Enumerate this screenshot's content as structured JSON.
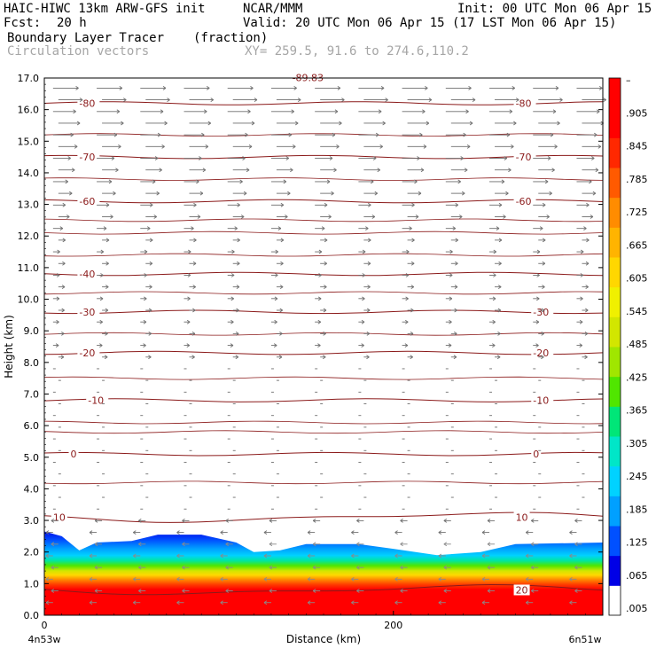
{
  "header": {
    "title_left": "HAIC-HIWC 13km ARW-GFS init",
    "org": "NCAR/MMM",
    "init": "Init: 00 UTC Mon 06 Apr 15",
    "fcst_label": "Fcst:",
    "fcst_value": "20 h",
    "valid": "Valid: 20 UTC Mon 06 Apr 15 (17 LST Mon 06 Apr 15)",
    "field": "Boundary Layer Tracer",
    "units": "(fraction)",
    "overlay": "Circulation vectors",
    "xy": "XY= 259.5, 91.6 to 274.6,110.2"
  },
  "chart_data": {
    "type": "heatmap",
    "xlabel": "Distance (km)",
    "ylabel": "Height (km)",
    "x_range": [
      0,
      320
    ],
    "ylim": [
      0.0,
      17.0
    ],
    "x_ticks": [
      "0",
      "200"
    ],
    "x_end_labels": [
      "4n53w",
      "6n51w"
    ],
    "y_ticks": [
      "0.0",
      "1.0",
      "2.0",
      "3.0",
      "4.0",
      "5.0",
      "6.0",
      "7.0",
      "8.0",
      "9.0",
      "10.0",
      "11.0",
      "12.0",
      "13.0",
      "14.0",
      "15.0",
      "16.0",
      "17.0"
    ],
    "colorbar_labels": [
      ".005",
      ".065",
      ".125",
      ".185",
      ".245",
      ".305",
      ".365",
      ".425",
      ".485",
      ".545",
      ".605",
      ".665",
      ".725",
      ".785",
      ".845",
      ".905",
      "–"
    ],
    "colorbar_colors": [
      "#ffffff",
      "#0000e6",
      "#0050ff",
      "#00a0ff",
      "#00d2ff",
      "#00e6c8",
      "#00e678",
      "#50e600",
      "#a0e600",
      "#d2e600",
      "#f0f000",
      "#ffd700",
      "#ffb400",
      "#ff8c00",
      "#ff5a00",
      "#ff2800",
      "#ff0000",
      "#ff0000"
    ],
    "pbl_top_km": [
      [
        0,
        2.65
      ],
      [
        10,
        2.5
      ],
      [
        20,
        2.05
      ],
      [
        30,
        2.3
      ],
      [
        50,
        2.35
      ],
      [
        65,
        2.55
      ],
      [
        90,
        2.55
      ],
      [
        110,
        2.3
      ],
      [
        120,
        2.0
      ],
      [
        135,
        2.05
      ],
      [
        150,
        2.25
      ],
      [
        180,
        2.25
      ],
      [
        200,
        2.1
      ],
      [
        225,
        1.9
      ],
      [
        250,
        2.0
      ],
      [
        270,
        2.25
      ],
      [
        320,
        2.3
      ]
    ],
    "temperature_contours": [
      {
        "label": "-80",
        "km": 16.2,
        "label_x": [
          20,
          270
        ]
      },
      {
        "label": "-70",
        "km": 14.5,
        "label_x": [
          20,
          270
        ]
      },
      {
        "label": "-60",
        "km": 13.1,
        "label_x": [
          20,
          270
        ]
      },
      {
        "label": "-40",
        "km": 10.8,
        "label_x": [
          20
        ]
      },
      {
        "label": "-30",
        "km": 9.6,
        "label_x": [
          20,
          280
        ]
      },
      {
        "label": "-20",
        "km": 8.3,
        "label_x": [
          20,
          280
        ]
      },
      {
        "label": "-10",
        "km": 6.8,
        "label_x": [
          25,
          280
        ]
      },
      {
        "label": "0",
        "km": 5.1,
        "label_x": [
          15,
          280
        ]
      },
      {
        "label": "10",
        "km": 3.1,
        "label_x": [
          5,
          270
        ]
      },
      {
        "label": "20",
        "km": 0.8,
        "label_x": [
          270
        ]
      }
    ],
    "top_label": "-89.83"
  }
}
